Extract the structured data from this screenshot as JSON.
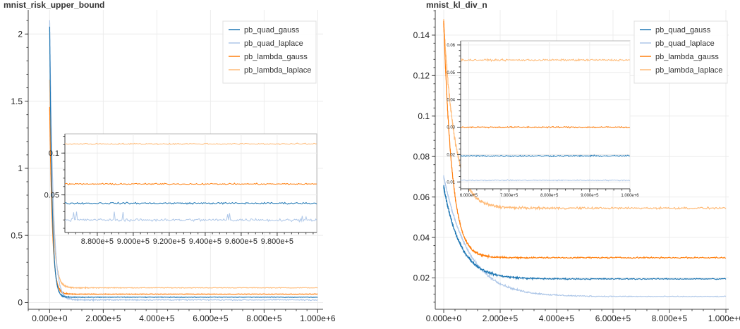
{
  "colors": {
    "pb_quad_gauss": "#1f77b4",
    "pb_quad_laplace": "#aec7e8",
    "pb_lambda_gauss": "#ff7f0e",
    "pb_lambda_laplace": "#ffbb78",
    "grid": "#ececec",
    "axis": "#444444"
  },
  "chart_data": [
    {
      "type": "line",
      "title": "mnist_risk_upper_bound",
      "xlabel": "",
      "ylabel": "",
      "xlim": [
        -80000,
        1020000
      ],
      "ylim": [
        -0.05,
        2.18
      ],
      "grid": true,
      "legend_position": "top-right",
      "x_ticks": [
        0,
        200000,
        400000,
        600000,
        800000,
        1000000
      ],
      "x_tick_labels": [
        "0.000e+0",
        "2.000e+5",
        "4.000e+5",
        "6.000e+5",
        "8.000e+5",
        "1.000e+6"
      ],
      "y_ticks": [
        0,
        0.5,
        1,
        1.5,
        2
      ],
      "y_tick_labels": [
        "0",
        "0.5",
        "1",
        "1.5",
        "2"
      ],
      "series": [
        {
          "name": "pb_quad_gauss",
          "start": 2.05,
          "final": 0.04,
          "decay": 9000,
          "noise": 0.003
        },
        {
          "name": "pb_quad_laplace",
          "start": 2.1,
          "final": 0.02,
          "decay": 13000,
          "noise": 0.006
        },
        {
          "name": "pb_lambda_gauss",
          "start": 1.45,
          "final": 0.063,
          "decay": 10000,
          "noise": 0.003
        },
        {
          "name": "pb_lambda_laplace",
          "start": 1.65,
          "final": 0.11,
          "decay": 12000,
          "noise": 0.004
        }
      ],
      "inset": {
        "xlim": [
          862000,
          1002000
        ],
        "ylim": [
          0.005,
          0.123
        ],
        "x_ticks": [
          880000,
          900000,
          920000,
          940000,
          960000,
          980000
        ],
        "x_tick_labels": [
          "8.800e+5",
          "9.000e+5",
          "9.200e+5",
          "9.400e+5",
          "9.600e+5",
          "9.800e+5"
        ],
        "y_ticks": [
          0.05,
          0.1
        ],
        "y_tick_labels": [
          "0.05",
          "0.1"
        ],
        "series_levels": [
          {
            "name": "pb_quad_gauss",
            "value": 0.04,
            "noise": 0.0015
          },
          {
            "name": "pb_quad_laplace",
            "value": 0.02,
            "noise": 0.0025
          },
          {
            "name": "pb_lambda_gauss",
            "value": 0.063,
            "noise": 0.0012
          },
          {
            "name": "pb_lambda_laplace",
            "value": 0.111,
            "noise": 0.0012
          }
        ]
      }
    },
    {
      "type": "line",
      "title": "mnist_kl_div_n",
      "xlabel": "",
      "ylabel": "",
      "xlim": [
        -30000,
        1010000
      ],
      "ylim": [
        0.0045,
        0.1525
      ],
      "grid": true,
      "legend_position": "top-right",
      "x_ticks": [
        0,
        200000,
        400000,
        600000,
        800000,
        1000000
      ],
      "x_tick_labels": [
        "0.000e+0",
        "2.000e+5",
        "4.000e+5",
        "6.000e+5",
        "8.000e+5",
        "1.000e+6"
      ],
      "y_ticks": [
        0.02,
        0.04,
        0.06,
        0.08,
        0.1,
        0.12,
        0.14
      ],
      "y_tick_labels": [
        "0.02",
        "0.04",
        "0.06",
        "0.08",
        "0.1",
        "0.12",
        "0.14"
      ],
      "series": [
        {
          "name": "pb_quad_gauss",
          "start": 0.065,
          "final": 0.0195,
          "decay": 60000,
          "noise": 0.0004
        },
        {
          "name": "pb_quad_laplace",
          "start": 0.07,
          "final": 0.0108,
          "decay": 90000,
          "noise": 0.0003
        },
        {
          "name": "pb_lambda_gauss",
          "start": 0.146,
          "final": 0.03,
          "decay": 30000,
          "noise": 0.0005
        },
        {
          "name": "pb_lambda_laplace",
          "start": 0.146,
          "final": 0.0545,
          "decay": 40000,
          "noise": 0.0007
        }
      ],
      "inset": {
        "xlim": [
          580000,
          1000000
        ],
        "ylim": [
          0.0075,
          0.0615
        ],
        "x_ticks": [
          600000,
          700000,
          800000,
          900000,
          1000000
        ],
        "x_tick_labels": [
          "6.000e+5",
          "7.000e+5",
          "8.000e+5",
          "9.000e+5",
          "1.000e+6"
        ],
        "y_ticks": [
          0.01,
          0.02,
          0.03,
          0.04,
          0.05,
          0.06
        ],
        "y_tick_labels": [
          "0.01",
          "0.02",
          "0.03",
          "0.04",
          "0.05",
          "0.06"
        ],
        "series_levels": [
          {
            "name": "pb_quad_gauss",
            "value": 0.0195,
            "noise": 0.0004
          },
          {
            "name": "pb_quad_laplace",
            "value": 0.0106,
            "noise": 0.0003
          },
          {
            "name": "pb_lambda_gauss",
            "value": 0.03,
            "noise": 0.0004
          },
          {
            "name": "pb_lambda_laplace",
            "value": 0.0545,
            "noise": 0.0005
          }
        ]
      }
    }
  ]
}
